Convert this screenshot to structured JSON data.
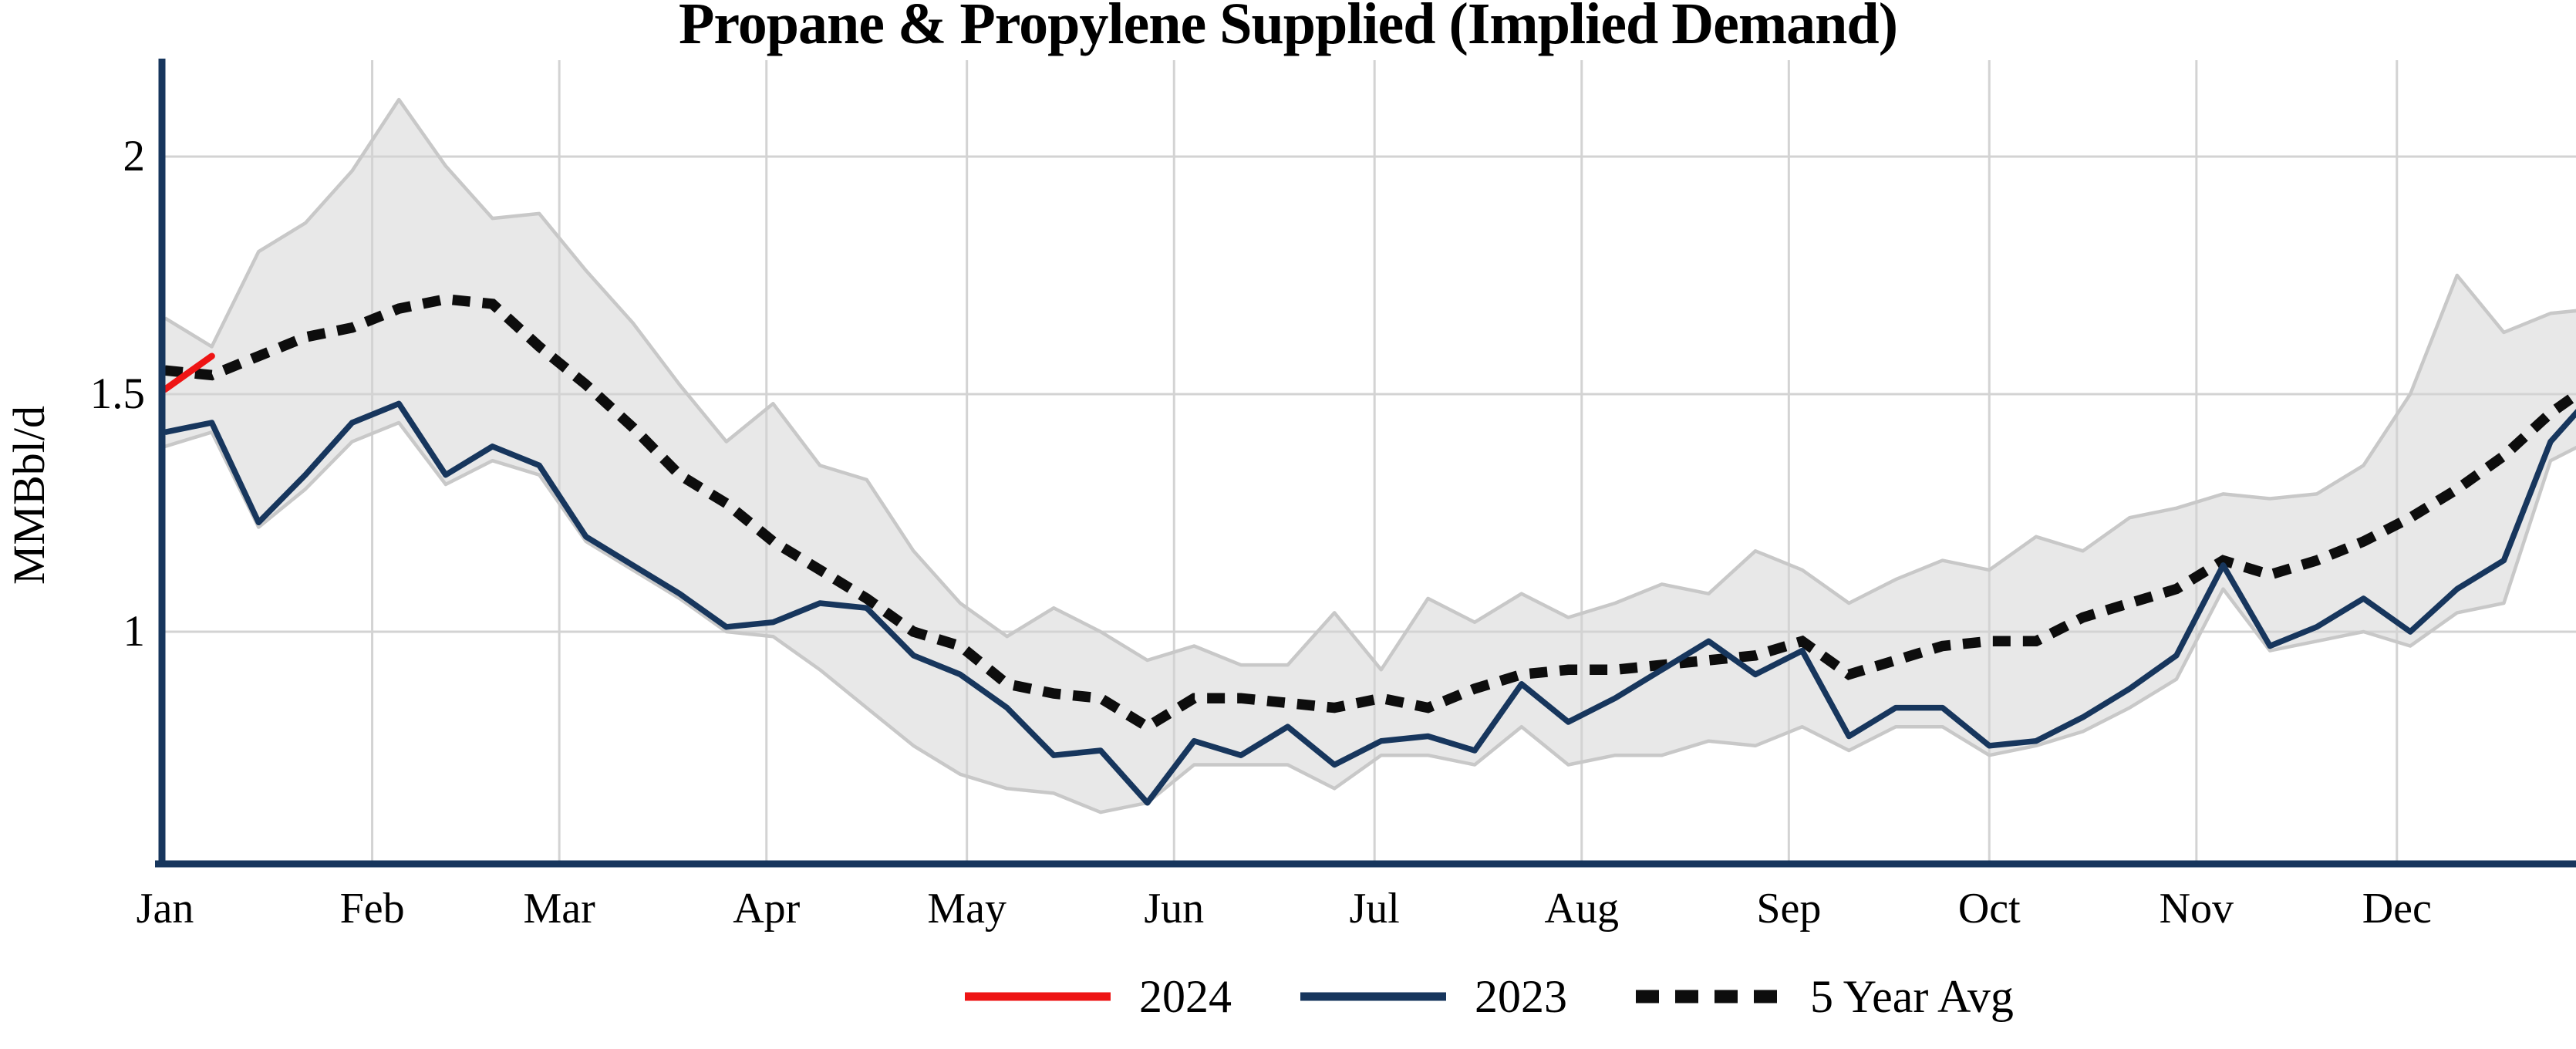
{
  "chart": {
    "title": "Propane & Propylene Supplied (Implied Demand)",
    "y_axis_label": "MMBbl/d",
    "y_ticks": [
      {
        "value": 2,
        "label": "2"
      },
      {
        "value": 1.5,
        "label": "1.5"
      },
      {
        "value": 1,
        "label": "1"
      }
    ],
    "x_tick_labels": [
      "Jan",
      "Feb",
      "Mar",
      "Apr",
      "May",
      "Jun",
      "Jul",
      "Aug",
      "Sep",
      "Oct",
      "Nov",
      "Dec"
    ],
    "legend": [
      {
        "label": "2024",
        "style": "solid",
        "color": "#ee1414"
      },
      {
        "label": "2023",
        "style": "solid",
        "color": "#17365d"
      },
      {
        "label": "5 Year Avg",
        "style": "dotted",
        "color": "#0d0d0d"
      }
    ],
    "colors": {
      "red_2024": "#ee1414",
      "navy_2023": "#17365d",
      "avg_dotted": "#0d0d0d",
      "band_fill": "#e8e8e8",
      "band_edge": "#c8c8c8",
      "grid": "#d3d3d3",
      "axis": "#17365d",
      "background": "#ffffff"
    }
  },
  "chart_data": {
    "type": "line",
    "title": "Propane & Propylene Supplied (Implied Demand)",
    "xlabel": "",
    "ylabel": "MMBbl/d",
    "x_unit": "weekly points, Jan through Dec",
    "ylim": [
      0.51,
      2.2
    ],
    "grid": "on",
    "legend_position": "bottom center",
    "y_tick_values": [
      1,
      1.5,
      2
    ],
    "categories_months": [
      "Jan",
      "Feb",
      "Mar",
      "Apr",
      "May",
      "Jun",
      "Jul",
      "Aug",
      "Sep",
      "Oct",
      "Nov",
      "Dec"
    ],
    "series": [
      {
        "name": "2024",
        "style": "solid",
        "color": "#ee1414",
        "values": [
          1.51,
          1.58
        ]
      },
      {
        "name": "2023",
        "style": "solid",
        "color": "#17365d",
        "values": [
          1.42,
          1.44,
          1.23,
          1.33,
          1.44,
          1.48,
          1.33,
          1.39,
          1.35,
          1.2,
          1.14,
          1.08,
          1.01,
          1.02,
          1.06,
          1.05,
          0.95,
          0.91,
          0.84,
          0.74,
          0.75,
          0.64,
          0.77,
          0.74,
          0.8,
          0.72,
          0.77,
          0.78,
          0.75,
          0.89,
          0.81,
          0.86,
          0.92,
          0.98,
          0.91,
          0.96,
          0.78,
          0.84,
          0.84,
          0.76,
          0.77,
          0.82,
          0.88,
          0.95,
          1.14,
          0.97,
          1.01,
          1.07,
          1.0,
          1.09,
          1.15,
          1.4,
          1.51
        ]
      },
      {
        "name": "5 Year Avg",
        "style": "dotted",
        "color": "#0d0d0d",
        "values": [
          1.55,
          1.54,
          1.58,
          1.62,
          1.64,
          1.68,
          1.7,
          1.69,
          1.6,
          1.52,
          1.43,
          1.33,
          1.27,
          1.19,
          1.13,
          1.07,
          1.0,
          0.97,
          0.89,
          0.87,
          0.86,
          0.8,
          0.86,
          0.86,
          0.85,
          0.84,
          0.86,
          0.84,
          0.88,
          0.91,
          0.92,
          0.92,
          0.93,
          0.94,
          0.95,
          0.98,
          0.91,
          0.94,
          0.97,
          0.98,
          0.98,
          1.03,
          1.06,
          1.09,
          1.15,
          1.12,
          1.15,
          1.19,
          1.24,
          1.3,
          1.37,
          1.46,
          1.53
        ]
      }
    ],
    "band": {
      "name": "5 year min-max range",
      "fill": "#e8e8e8",
      "edge": "#c8c8c8",
      "min": [
        1.39,
        1.42,
        1.22,
        1.3,
        1.4,
        1.44,
        1.31,
        1.36,
        1.33,
        1.19,
        1.13,
        1.07,
        1.0,
        0.99,
        0.92,
        0.84,
        0.76,
        0.7,
        0.67,
        0.66,
        0.62,
        0.64,
        0.72,
        0.72,
        0.72,
        0.67,
        0.74,
        0.74,
        0.72,
        0.8,
        0.72,
        0.74,
        0.74,
        0.77,
        0.76,
        0.8,
        0.75,
        0.8,
        0.8,
        0.74,
        0.76,
        0.79,
        0.84,
        0.9,
        1.09,
        0.96,
        0.98,
        1.0,
        0.97,
        1.04,
        1.06,
        1.36,
        1.41
      ],
      "max": [
        1.66,
        1.6,
        1.8,
        1.86,
        1.97,
        2.12,
        1.98,
        1.87,
        1.88,
        1.76,
        1.65,
        1.52,
        1.4,
        1.48,
        1.35,
        1.32,
        1.17,
        1.06,
        0.99,
        1.05,
        1.0,
        0.94,
        0.97,
        0.93,
        0.93,
        1.04,
        0.92,
        1.07,
        1.02,
        1.08,
        1.03,
        1.06,
        1.1,
        1.08,
        1.17,
        1.13,
        1.06,
        1.11,
        1.15,
        1.13,
        1.2,
        1.17,
        1.24,
        1.26,
        1.29,
        1.28,
        1.29,
        1.35,
        1.5,
        1.75,
        1.63,
        1.67,
        1.68
      ]
    }
  }
}
